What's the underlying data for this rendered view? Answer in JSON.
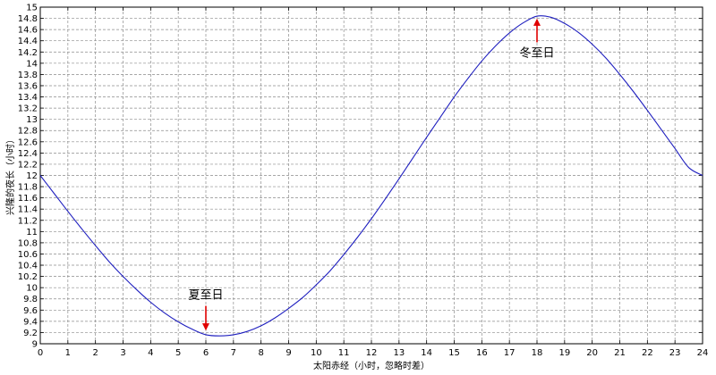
{
  "chart_data": {
    "type": "line",
    "title": "",
    "xlabel": "太阳赤经（小时，忽略时差）",
    "ylabel": "兴隆的夜长（小时）",
    "xlim": [
      0,
      24
    ],
    "ylim": [
      9,
      15
    ],
    "xticks": [
      0,
      1,
      2,
      3,
      4,
      5,
      6,
      7,
      8,
      9,
      10,
      11,
      12,
      13,
      14,
      15,
      16,
      17,
      18,
      19,
      20,
      21,
      22,
      23,
      24
    ],
    "yticks": [
      9,
      9.2,
      9.4,
      9.6,
      9.8,
      10,
      10.2,
      10.4,
      10.6,
      10.8,
      11,
      11.2,
      11.4,
      11.6,
      11.8,
      12,
      12.2,
      12.4,
      12.6,
      12.8,
      13,
      13.2,
      13.4,
      13.6,
      13.8,
      14,
      14.2,
      14.4,
      14.6,
      14.8,
      15
    ],
    "grid": true,
    "series": [
      {
        "color": "#1f1fbf",
        "x": [
          0,
          0.5,
          1,
          1.5,
          2,
          2.5,
          3,
          3.5,
          4,
          4.5,
          5,
          5.5,
          6,
          6.5,
          7,
          7.5,
          8,
          8.5,
          9,
          9.5,
          10,
          10.5,
          11,
          11.5,
          12,
          12.5,
          13,
          13.5,
          14,
          14.5,
          15,
          15.5,
          16,
          16.5,
          17,
          17.5,
          18,
          18.5,
          19,
          19.5,
          20,
          20.5,
          21,
          21.5,
          22,
          22.5,
          23,
          23.5,
          24
        ],
        "y": [
          12.0,
          11.68,
          11.36,
          11.05,
          10.75,
          10.46,
          10.2,
          9.96,
          9.74,
          9.55,
          9.39,
          9.26,
          9.16,
          9.14,
          9.16,
          9.22,
          9.32,
          9.46,
          9.63,
          9.82,
          10.05,
          10.3,
          10.59,
          10.9,
          11.23,
          11.58,
          11.94,
          12.31,
          12.68,
          13.04,
          13.4,
          13.73,
          14.04,
          14.31,
          14.54,
          14.72,
          14.84,
          14.82,
          14.71,
          14.55,
          14.34,
          14.09,
          13.8,
          13.49,
          13.16,
          12.82,
          12.48,
          12.14,
          12.0
        ]
      }
    ],
    "annotations": [
      {
        "text": "夏至日",
        "x": 6,
        "y": 9.15,
        "arrow": "down"
      },
      {
        "text": "冬至日",
        "x": 18,
        "y": 14.85,
        "arrow": "up"
      }
    ]
  },
  "colors": {
    "line": "#1f1fbf",
    "arrow": "#e00000",
    "grid": "#8c8c8c"
  }
}
